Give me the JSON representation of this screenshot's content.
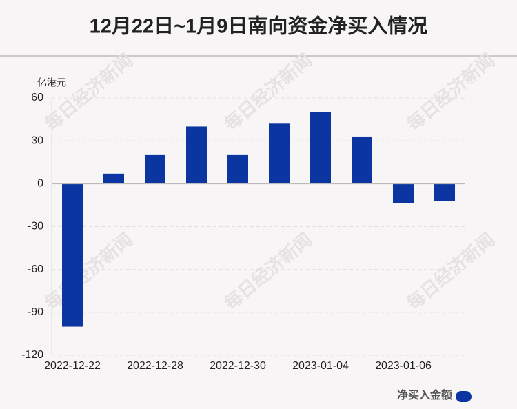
{
  "chart_data": {
    "type": "bar",
    "title": "12月22日~1月9日南向资金净买入情况",
    "y_label": "亿港元",
    "watermark": "每日经济新闻",
    "categories": [
      "2022-12-22",
      null,
      "2022-12-28",
      null,
      "2022-12-30",
      null,
      "2023-01-04",
      null,
      "2023-01-06",
      null
    ],
    "series": [
      {
        "name": "净买入金额",
        "color": "#0b35a0",
        "values": [
          -100,
          7,
          20,
          40,
          20,
          42,
          50,
          33,
          -13.5,
          -12
        ]
      }
    ],
    "ylim": [
      -120,
      60
    ],
    "yticks": [
      -120,
      -90,
      -60,
      -30,
      0,
      30,
      60
    ],
    "grid": true,
    "legend": "bottom-right"
  }
}
